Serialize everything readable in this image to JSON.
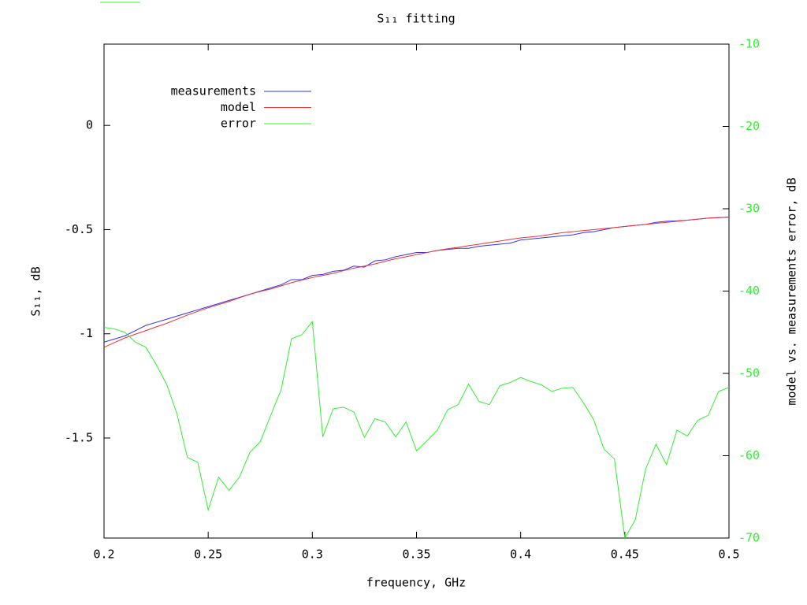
{
  "chart_data": {
    "type": "line",
    "title": "S₁₁ fitting",
    "x_label": "frequency, GHz",
    "y_label": "S₁₁, dB",
    "y2_label": "model vs. measurements error, dB",
    "x": [
      0.2,
      0.205,
      0.21,
      0.215,
      0.22,
      0.225,
      0.23,
      0.235,
      0.24,
      0.245,
      0.25,
      0.255,
      0.26,
      0.265,
      0.27,
      0.275,
      0.28,
      0.285,
      0.29,
      0.295,
      0.3,
      0.305,
      0.31,
      0.315,
      0.32,
      0.325,
      0.33,
      0.335,
      0.34,
      0.345,
      0.35,
      0.355,
      0.36,
      0.365,
      0.37,
      0.375,
      0.38,
      0.385,
      0.39,
      0.395,
      0.4,
      0.405,
      0.41,
      0.415,
      0.42,
      0.425,
      0.43,
      0.435,
      0.44,
      0.445,
      0.45,
      0.455,
      0.46,
      0.465,
      0.47,
      0.475,
      0.48,
      0.485,
      0.49,
      0.495,
      0.5
    ],
    "series": [
      {
        "name": "measurements",
        "color": "#3333ee",
        "values": [
          -1.04,
          -1.025,
          -1.01,
          -0.985,
          -0.96,
          -0.945,
          -0.93,
          -0.915,
          -0.9,
          -0.885,
          -0.87,
          -0.855,
          -0.84,
          -0.825,
          -0.81,
          -0.795,
          -0.78,
          -0.765,
          -0.74,
          -0.74,
          -0.72,
          -0.715,
          -0.7,
          -0.695,
          -0.675,
          -0.68,
          -0.65,
          -0.645,
          -0.63,
          -0.62,
          -0.61,
          -0.61,
          -0.6,
          -0.595,
          -0.59,
          -0.59,
          -0.58,
          -0.575,
          -0.57,
          -0.565,
          -0.55,
          -0.545,
          -0.54,
          -0.535,
          -0.53,
          -0.525,
          -0.515,
          -0.51,
          -0.5,
          -0.49,
          -0.485,
          -0.48,
          -0.475,
          -0.465,
          -0.46,
          -0.458,
          -0.455,
          -0.45,
          -0.445,
          -0.443,
          -0.44
        ]
      },
      {
        "name": "model",
        "color": "#ee3333",
        "values": [
          -1.065,
          -1.042,
          -1.02,
          -1.002,
          -0.985,
          -0.967,
          -0.95,
          -0.93,
          -0.91,
          -0.892,
          -0.875,
          -0.86,
          -0.845,
          -0.827,
          -0.81,
          -0.797,
          -0.785,
          -0.77,
          -0.755,
          -0.742,
          -0.73,
          -0.72,
          -0.71,
          -0.697,
          -0.685,
          -0.675,
          -0.665,
          -0.652,
          -0.64,
          -0.63,
          -0.62,
          -0.61,
          -0.6,
          -0.592,
          -0.585,
          -0.577,
          -0.57,
          -0.562,
          -0.555,
          -0.547,
          -0.54,
          -0.535,
          -0.53,
          -0.522,
          -0.515,
          -0.51,
          -0.505,
          -0.5,
          -0.495,
          -0.49,
          -0.485,
          -0.48,
          -0.475,
          -0.47,
          -0.465,
          -0.46,
          -0.455,
          -0.45,
          -0.445,
          -0.442,
          -0.44
        ]
      },
      {
        "name": "error",
        "color": "#33ee33",
        "axis": "y2",
        "values": [
          -44.4,
          -44.6,
          -45.0,
          -46.2,
          -46.8,
          -48.9,
          -51.3,
          -54.9,
          -60.2,
          -60.8,
          -66.6,
          -62.6,
          -64.2,
          -62.6,
          -59.6,
          -58.3,
          -55.1,
          -52.0,
          -45.8,
          -45.3,
          -43.7,
          -57.7,
          -54.3,
          -54.1,
          -54.7,
          -57.8,
          -55.5,
          -55.9,
          -57.7,
          -55.9,
          -59.4,
          -58.2,
          -56.9,
          -54.4,
          -53.8,
          -51.3,
          -53.4,
          -53.8,
          -51.5,
          -51.1,
          -50.5,
          -51.0,
          -51.4,
          -52.2,
          -51.8,
          -51.7,
          -53.5,
          -55.6,
          -59.2,
          -60.4,
          -70.0,
          -67.8,
          -61.6,
          -58.6,
          -61.1,
          -56.9,
          -57.6,
          -55.7,
          -55.1,
          -52.2,
          -51.7
        ]
      }
    ],
    "xlim": [
      0.2,
      0.5
    ],
    "xticks": [
      0.2,
      0.25,
      0.3,
      0.35,
      0.4,
      0.45,
      0.5
    ],
    "ylim": [
      -1.98,
      0.39
    ],
    "yticks": [
      0,
      -0.5,
      -1,
      -1.5
    ],
    "y2lim": [
      -70,
      -10
    ],
    "y2ticks": [
      -10,
      -20,
      -30,
      -40,
      -50,
      -60,
      -70
    ],
    "y2_color": "#33ee33",
    "legend": "top-left",
    "grid": false
  }
}
